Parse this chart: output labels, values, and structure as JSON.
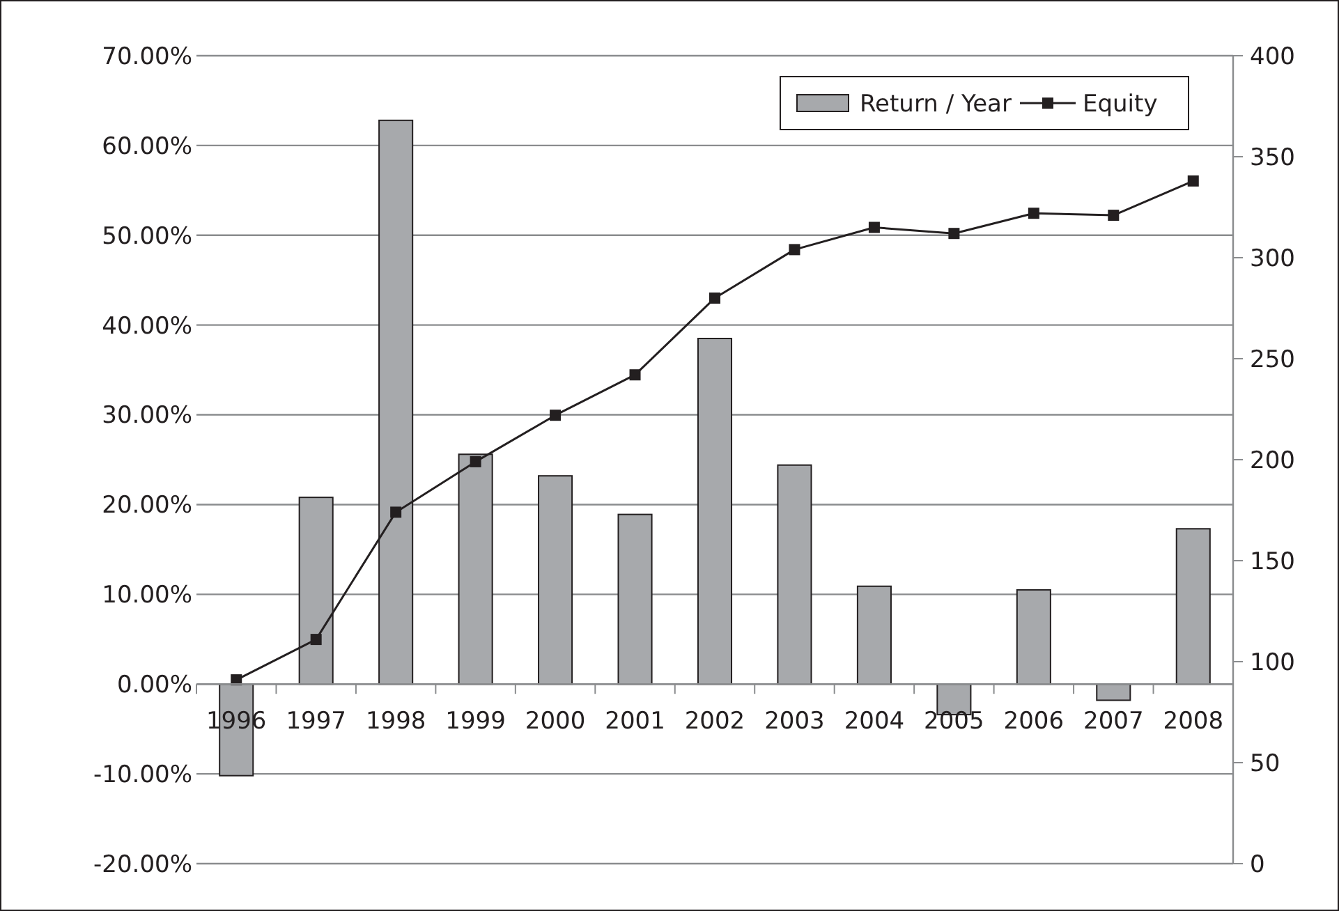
{
  "chart_data": {
    "type": "bar",
    "categories": [
      "1996",
      "1997",
      "1998",
      "1999",
      "2000",
      "2001",
      "2002",
      "2003",
      "2004",
      "2005",
      "2006",
      "2007",
      "2008"
    ],
    "series": [
      {
        "name": "Return / Year",
        "color": "#a7a9ac",
        "values": [
          -10.2,
          20.8,
          62.8,
          25.6,
          23.2,
          18.9,
          38.5,
          24.4,
          10.9,
          -3.4,
          10.5,
          -1.8,
          17.3
        ]
      },
      {
        "name": "Equity",
        "type": "line",
        "axis": "y2",
        "color": "#231f20",
        "marker": "square",
        "values": [
          91,
          111,
          174,
          199,
          222,
          242,
          280,
          304,
          315,
          312,
          322,
          321,
          338
        ]
      }
    ],
    "ylim": [
      -20,
      70
    ],
    "yticks": [
      {
        "value": -20,
        "label": "-20.00%"
      },
      {
        "value": -10,
        "label": "-10.00%"
      },
      {
        "value": 0,
        "label": "0.00%"
      },
      {
        "value": 10,
        "label": "10.00%"
      },
      {
        "value": 20,
        "label": "20.00%"
      },
      {
        "value": 30,
        "label": "30.00%"
      },
      {
        "value": 40,
        "label": "40.00%"
      },
      {
        "value": 50,
        "label": "50.00%"
      },
      {
        "value": 60,
        "label": "60.00%"
      },
      {
        "value": 70,
        "label": "70.00%"
      }
    ],
    "y2lim": [
      0,
      400
    ],
    "y2ticks": [
      0,
      50,
      100,
      150,
      200,
      250,
      300,
      350,
      400
    ],
    "grid": "y",
    "legend": "top right"
  }
}
